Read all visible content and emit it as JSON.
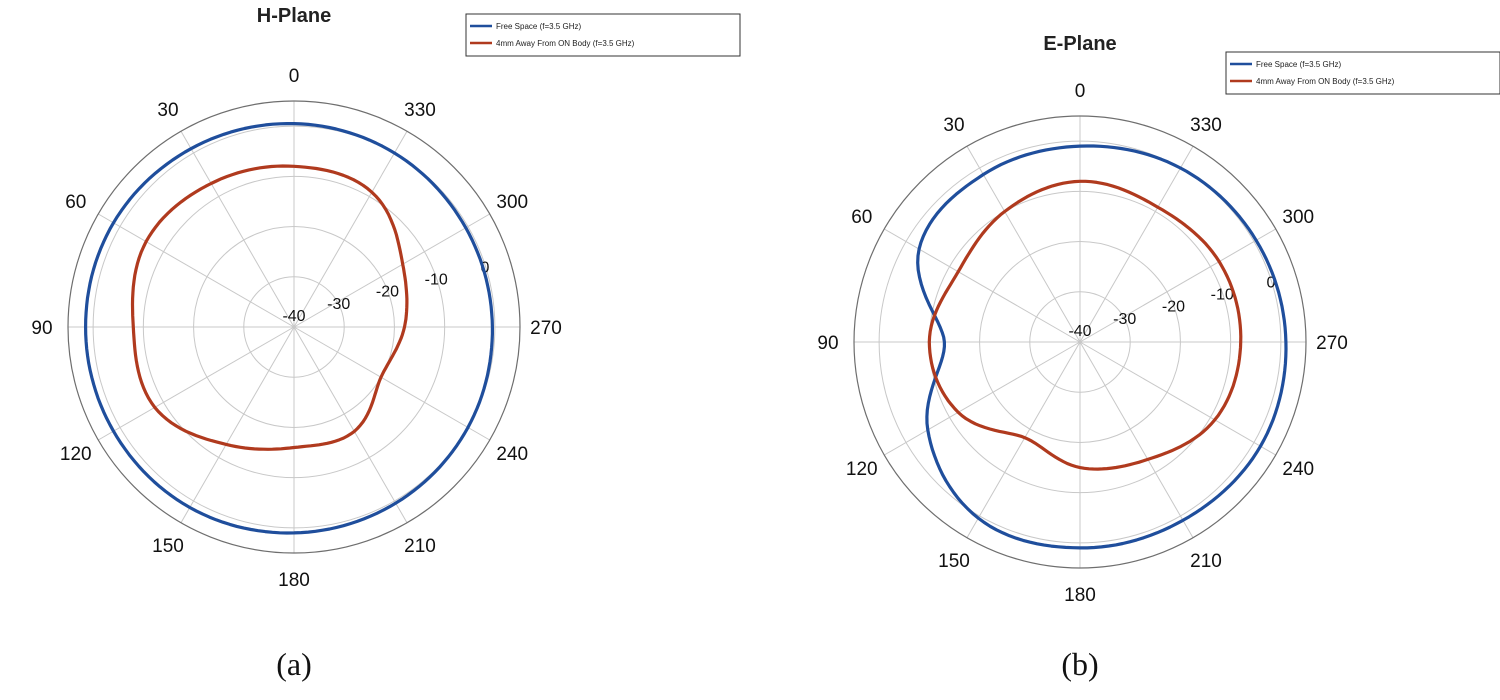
{
  "chart_data": [
    {
      "type": "polar-line",
      "title": "H-Plane",
      "caption": "(a)",
      "angle_ticks": [
        0,
        30,
        60,
        90,
        120,
        150,
        180,
        210,
        240,
        270,
        300,
        330
      ],
      "angle_tick_labels": [
        "0",
        "30",
        "60",
        "90",
        "120",
        "150",
        "180",
        "210",
        "240",
        "270",
        "300",
        "330"
      ],
      "radial_ticks": [
        -40,
        -30,
        -20,
        -10,
        0
      ],
      "radial_tick_labels": [
        "-40",
        "-30",
        "-20",
        "-10",
        "0"
      ],
      "rlim": [
        -40,
        5
      ],
      "legend": {
        "position": "top-right"
      },
      "series": [
        {
          "name": "Free Space (f=3.5 GHz)",
          "color": "#1f4e9c",
          "angles": [
            0,
            30,
            60,
            90,
            120,
            150,
            180,
            210,
            240,
            270,
            300,
            330
          ],
          "values": [
            0.5,
            1.0,
            1.5,
            1.5,
            1.5,
            1.5,
            1.0,
            0.5,
            0.0,
            -0.5,
            -0.5,
            0.0
          ]
        },
        {
          "name": "4mm Away From ON Body (f=3.5 GHz)",
          "color": "#b03a1e",
          "angles": [
            0,
            30,
            60,
            90,
            120,
            150,
            180,
            210,
            240,
            270,
            300,
            330
          ],
          "values": [
            -8,
            -7,
            -6,
            -8,
            -8,
            -13,
            -16,
            -16,
            -20,
            -18,
            -15,
            -9
          ]
        }
      ]
    },
    {
      "type": "polar-line",
      "title": "E-Plane",
      "caption": "(b)",
      "angle_ticks": [
        0,
        30,
        60,
        90,
        120,
        150,
        180,
        210,
        240,
        270,
        300,
        330
      ],
      "angle_tick_labels": [
        "0",
        "30",
        "60",
        "90",
        "120",
        "150",
        "180",
        "210",
        "240",
        "270",
        "300",
        "330"
      ],
      "radial_ticks": [
        -40,
        -30,
        -20,
        -10,
        0
      ],
      "radial_tick_labels": [
        "-40",
        "-30",
        "-20",
        "-10",
        "0"
      ],
      "rlim": [
        -40,
        5
      ],
      "legend": {
        "position": "top-right"
      },
      "series": [
        {
          "name": "Free Space (f=3.5 GHz)",
          "color": "#1f4e9c",
          "angles": [
            0,
            30,
            60,
            90,
            120,
            150,
            180,
            210,
            240,
            270,
            300,
            330
          ],
          "values": [
            -1.0,
            -1.5,
            -3.0,
            -13.0,
            -5.0,
            0.5,
            1.0,
            1.0,
            1.5,
            1.0,
            0.5,
            0.0
          ]
        },
        {
          "name": "4mm Away From ON Body (f=3.5 GHz)",
          "color": "#b03a1e",
          "angles": [
            0,
            30,
            60,
            90,
            120,
            150,
            180,
            210,
            240,
            270,
            300,
            330
          ],
          "values": [
            -8.0,
            -10.0,
            -12.0,
            -10.0,
            -12.0,
            -18.0,
            -15.0,
            -13.0,
            -9.0,
            -8.0,
            -8.0,
            -9.0
          ]
        }
      ]
    }
  ]
}
